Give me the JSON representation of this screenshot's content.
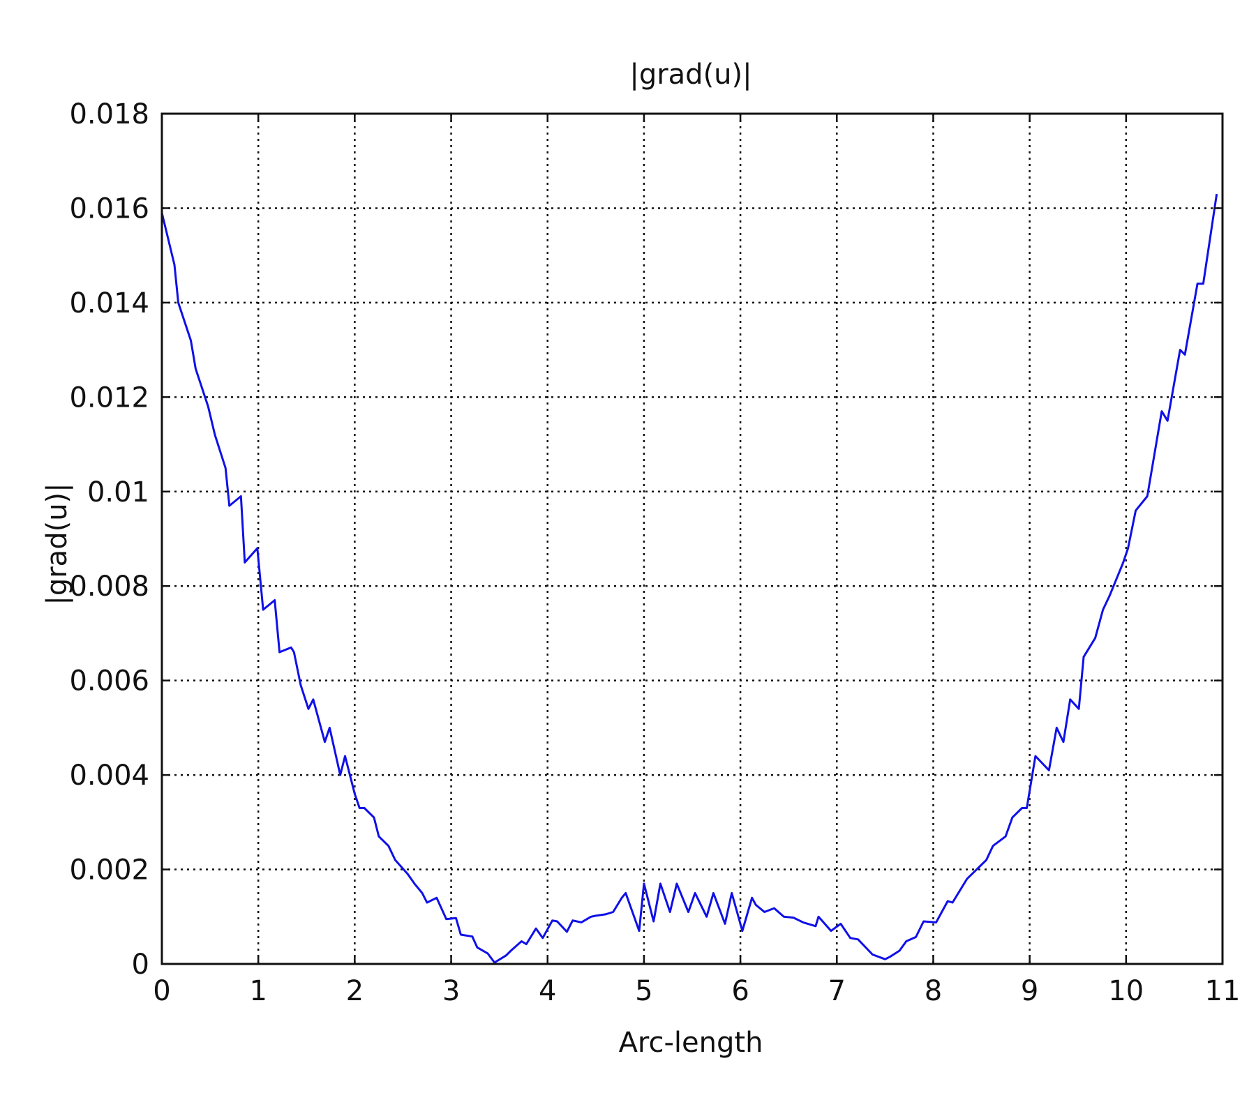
{
  "chart_data": {
    "type": "line",
    "title": "|grad(u)|",
    "xlabel": "Arc-length",
    "ylabel": "|grad(u)|",
    "xlim": [
      0,
      11
    ],
    "ylim": [
      0,
      0.018
    ],
    "grid": true,
    "x_ticks": [
      "0",
      "1",
      "2",
      "3",
      "4",
      "5",
      "6",
      "7",
      "8",
      "9",
      "10",
      "11"
    ],
    "y_ticks": [
      "0",
      "0.002",
      "0.004",
      "0.006",
      "0.008",
      "0.01",
      "0.012",
      "0.014",
      "0.016",
      "0.018"
    ],
    "line_color": "#1010e8",
    "series": [
      {
        "x": [
          0.0,
          0.13,
          0.17,
          0.3,
          0.35,
          0.48,
          0.55,
          0.66,
          0.7,
          0.82,
          0.86,
          0.99,
          1.05,
          1.17,
          1.22,
          1.34,
          1.37,
          1.44,
          1.52,
          1.57,
          1.69,
          1.74,
          1.85,
          1.9,
          2.0,
          2.05,
          2.1,
          2.2,
          2.25,
          2.35,
          2.42,
          2.55,
          2.62,
          2.7,
          2.75,
          2.85,
          2.95,
          3.05,
          3.1,
          3.22,
          3.27,
          3.38,
          3.45,
          3.57,
          3.62,
          3.73,
          3.78,
          3.88,
          3.95,
          4.05,
          4.1,
          4.2,
          4.26,
          4.35,
          4.45,
          4.5,
          4.6,
          4.68,
          4.77,
          4.81,
          4.95,
          5.0,
          5.1,
          5.17,
          5.27,
          5.34,
          5.46,
          5.53,
          5.65,
          5.72,
          5.84,
          5.91,
          6.02,
          6.12,
          6.16,
          6.25,
          6.35,
          6.45,
          6.55,
          6.65,
          6.78,
          6.81,
          6.94,
          7.04,
          7.14,
          7.22,
          7.37,
          7.5,
          7.55,
          7.65,
          7.72,
          7.82,
          7.9,
          8.03,
          8.15,
          8.2,
          8.35,
          8.55,
          8.62,
          8.75,
          8.82,
          8.92,
          8.97,
          9.06,
          9.2,
          9.28,
          9.35,
          9.42,
          9.51,
          9.56,
          9.68,
          9.76,
          9.83,
          9.97,
          10.02,
          10.1,
          10.22,
          10.37,
          10.43,
          10.56,
          10.61,
          10.74,
          10.8,
          10.94
        ],
        "y": [
          0.0159,
          0.0148,
          0.014,
          0.0132,
          0.0126,
          0.0118,
          0.0112,
          0.0105,
          0.0097,
          0.0099,
          0.0085,
          0.0088,
          0.0075,
          0.0077,
          0.0066,
          0.0067,
          0.0066,
          0.0059,
          0.0054,
          0.0056,
          0.0047,
          0.005,
          0.004,
          0.0044,
          0.0036,
          0.0033,
          0.0033,
          0.0031,
          0.0027,
          0.0025,
          0.0022,
          0.0019,
          0.0017,
          0.0015,
          0.0013,
          0.0014,
          0.00095,
          0.00097,
          0.00062,
          0.00058,
          0.00035,
          0.00022,
          3e-05,
          0.00018,
          0.00028,
          0.00048,
          0.00042,
          0.00075,
          0.00055,
          0.00092,
          0.0009,
          0.00068,
          0.00092,
          0.00088,
          0.001,
          0.00102,
          0.00105,
          0.0011,
          0.0014,
          0.0015,
          0.0007,
          0.0017,
          0.0009,
          0.0017,
          0.0011,
          0.0017,
          0.0011,
          0.0015,
          0.001,
          0.0015,
          0.00085,
          0.0015,
          0.0007,
          0.0014,
          0.00125,
          0.0011,
          0.00118,
          0.001,
          0.00098,
          0.00088,
          0.0008,
          0.001,
          0.0007,
          0.00085,
          0.00055,
          0.00052,
          0.0002,
          0.0001,
          0.00015,
          0.00028,
          0.00048,
          0.00057,
          0.0009,
          0.00088,
          0.00133,
          0.0013,
          0.0018,
          0.0022,
          0.0025,
          0.0027,
          0.0031,
          0.0033,
          0.0033,
          0.0044,
          0.0041,
          0.005,
          0.0047,
          0.0056,
          0.0054,
          0.0065,
          0.0069,
          0.0075,
          0.0078,
          0.0085,
          0.0088,
          0.0096,
          0.0099,
          0.0117,
          0.0115,
          0.013,
          0.0129,
          0.0144,
          0.0144,
          0.0163
        ]
      }
    ]
  }
}
